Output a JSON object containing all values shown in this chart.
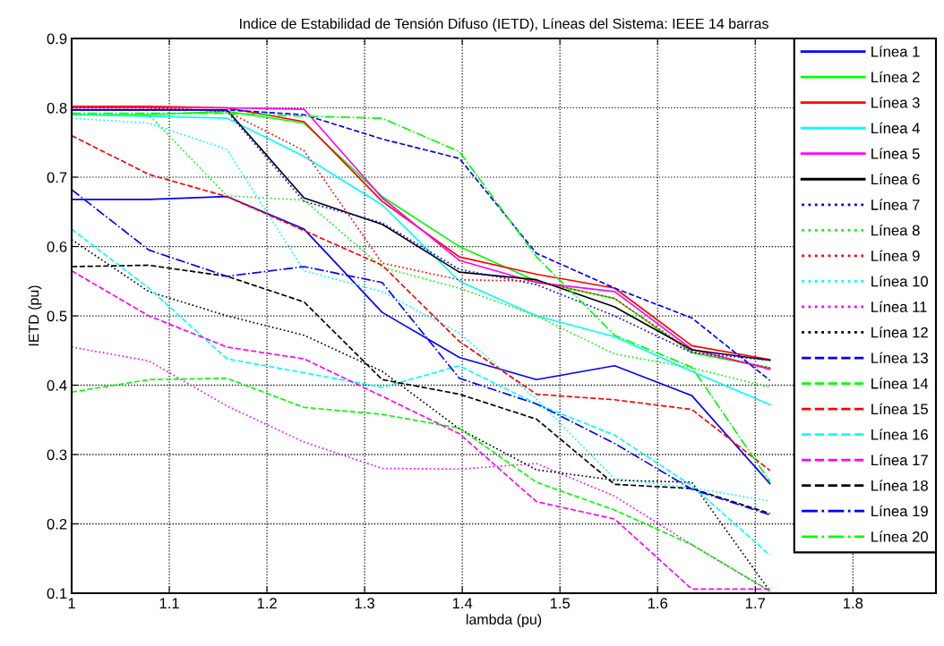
{
  "chart_data": {
    "type": "line",
    "title": "Indice de Estabilidad de Tensión Difuso (IETD), Líneas del Sistema: IEEE 14 barras",
    "xlabel": "lambda (pu)",
    "ylabel": "IETD (pu)",
    "x": [
      1,
      1.079,
      1.159,
      1.238,
      1.318,
      1.397,
      1.476,
      1.556,
      1.635,
      1.715
    ],
    "xlim": [
      1,
      1.885
    ],
    "xticks": [
      1,
      1.1,
      1.2,
      1.3,
      1.4,
      1.5,
      1.6,
      1.7,
      1.8
    ],
    "ylim": [
      0.1,
      0.9
    ],
    "yticks": [
      0.1,
      0.2,
      0.3,
      0.4,
      0.5,
      0.6,
      0.7,
      0.8,
      0.9
    ],
    "grid": true,
    "legend": "top right",
    "marker": "none",
    "series": [
      {
        "name": "Línea 1",
        "color": "#0000ff",
        "line_style": "solid",
        "values": [
          0.668,
          0.668,
          0.672,
          0.625,
          0.505,
          0.44,
          0.408,
          0.428,
          0.385,
          0.258
        ]
      },
      {
        "name": "Línea 2",
        "color": "#00ff00",
        "line_style": "solid",
        "values": [
          0.79,
          0.79,
          0.795,
          0.778,
          0.672,
          0.6,
          0.55,
          0.525,
          0.447,
          0.425
        ]
      },
      {
        "name": "Línea 3",
        "color": "#ff0000",
        "line_style": "solid",
        "values": [
          0.802,
          0.802,
          0.8,
          0.78,
          0.665,
          0.585,
          0.56,
          0.54,
          0.457,
          0.437
        ]
      },
      {
        "name": "Línea 4",
        "color": "#00ffff",
        "line_style": "solid",
        "values": [
          0.79,
          0.788,
          0.785,
          0.73,
          0.66,
          0.55,
          0.5,
          0.47,
          0.42,
          0.372
        ]
      },
      {
        "name": "Línea 5",
        "color": "#ff00ff",
        "line_style": "solid",
        "values": [
          0.8,
          0.8,
          0.8,
          0.798,
          0.67,
          0.58,
          0.548,
          0.535,
          0.452,
          0.423
        ]
      },
      {
        "name": "Línea 6",
        "color": "#000000",
        "line_style": "solid",
        "values": [
          0.797,
          0.797,
          0.797,
          0.67,
          0.632,
          0.563,
          0.552,
          0.513,
          0.451,
          0.436
        ]
      },
      {
        "name": "Línea 7",
        "color": "#0000ff",
        "line_style": "dotted",
        "values": [
          0.8,
          0.8,
          0.795,
          0.665,
          0.634,
          0.567,
          0.545,
          0.5,
          0.447,
          0.436
        ]
      },
      {
        "name": "Línea 8",
        "color": "#00ff00",
        "line_style": "dotted",
        "values": [
          0.79,
          0.79,
          0.673,
          0.667,
          0.57,
          0.54,
          0.5,
          0.445,
          0.425,
          0.397
        ]
      },
      {
        "name": "Línea 9",
        "color": "#ff0000",
        "line_style": "dotted",
        "values": [
          0.802,
          0.8,
          0.795,
          0.738,
          0.576,
          0.552,
          0.55,
          0.525,
          0.449,
          0.425
        ]
      },
      {
        "name": "Línea 10",
        "color": "#00ffff",
        "line_style": "dotted",
        "values": [
          0.785,
          0.778,
          0.74,
          0.565,
          0.535,
          0.475,
          0.38,
          0.265,
          0.252,
          0.233
        ]
      },
      {
        "name": "Línea 11",
        "color": "#ff00ff",
        "line_style": "dotted",
        "values": [
          0.455,
          0.435,
          0.37,
          0.318,
          0.28,
          0.279,
          0.287,
          0.24,
          0.17,
          0.103
        ]
      },
      {
        "name": "Línea 12",
        "color": "#000000",
        "line_style": "dotted",
        "values": [
          0.61,
          0.535,
          0.5,
          0.472,
          0.42,
          0.337,
          0.278,
          0.263,
          0.26,
          0.103
        ]
      },
      {
        "name": "Línea 13",
        "color": "#0000ff",
        "line_style": "dashed",
        "values": [
          0.797,
          0.797,
          0.797,
          0.79,
          0.755,
          0.727,
          0.59,
          0.54,
          0.497,
          0.407
        ]
      },
      {
        "name": "Línea 14",
        "color": "#00ff00",
        "line_style": "dashed",
        "values": [
          0.39,
          0.408,
          0.41,
          0.368,
          0.358,
          0.338,
          0.26,
          0.22,
          0.17,
          0.103
        ]
      },
      {
        "name": "Línea 15",
        "color": "#ff0000",
        "line_style": "dashed",
        "values": [
          0.76,
          0.704,
          0.672,
          0.623,
          0.573,
          0.463,
          0.387,
          0.379,
          0.365,
          0.277
        ]
      },
      {
        "name": "Línea 16",
        "color": "#00ffff",
        "line_style": "dashed",
        "values": [
          0.625,
          0.54,
          0.438,
          0.418,
          0.397,
          0.428,
          0.373,
          0.328,
          0.255,
          0.155
        ]
      },
      {
        "name": "Línea 17",
        "color": "#ff00ff",
        "line_style": "dashed",
        "values": [
          0.565,
          0.5,
          0.455,
          0.438,
          0.384,
          0.33,
          0.232,
          0.207,
          0.106,
          0.106
        ]
      },
      {
        "name": "Línea 18",
        "color": "#000000",
        "line_style": "dashed",
        "values": [
          0.571,
          0.573,
          0.557,
          0.52,
          0.408,
          0.387,
          0.351,
          0.257,
          0.251,
          0.215
        ]
      },
      {
        "name": "Línea 19",
        "color": "#0000ff",
        "line_style": "dashdot",
        "values": [
          0.682,
          0.595,
          0.557,
          0.571,
          0.548,
          0.41,
          0.373,
          0.316,
          0.25,
          0.213
        ]
      },
      {
        "name": "Línea 20",
        "color": "#00ff00",
        "line_style": "dashdot",
        "values": [
          0.792,
          0.792,
          0.792,
          0.788,
          0.785,
          0.737,
          0.585,
          0.472,
          0.426,
          0.261
        ]
      }
    ]
  }
}
